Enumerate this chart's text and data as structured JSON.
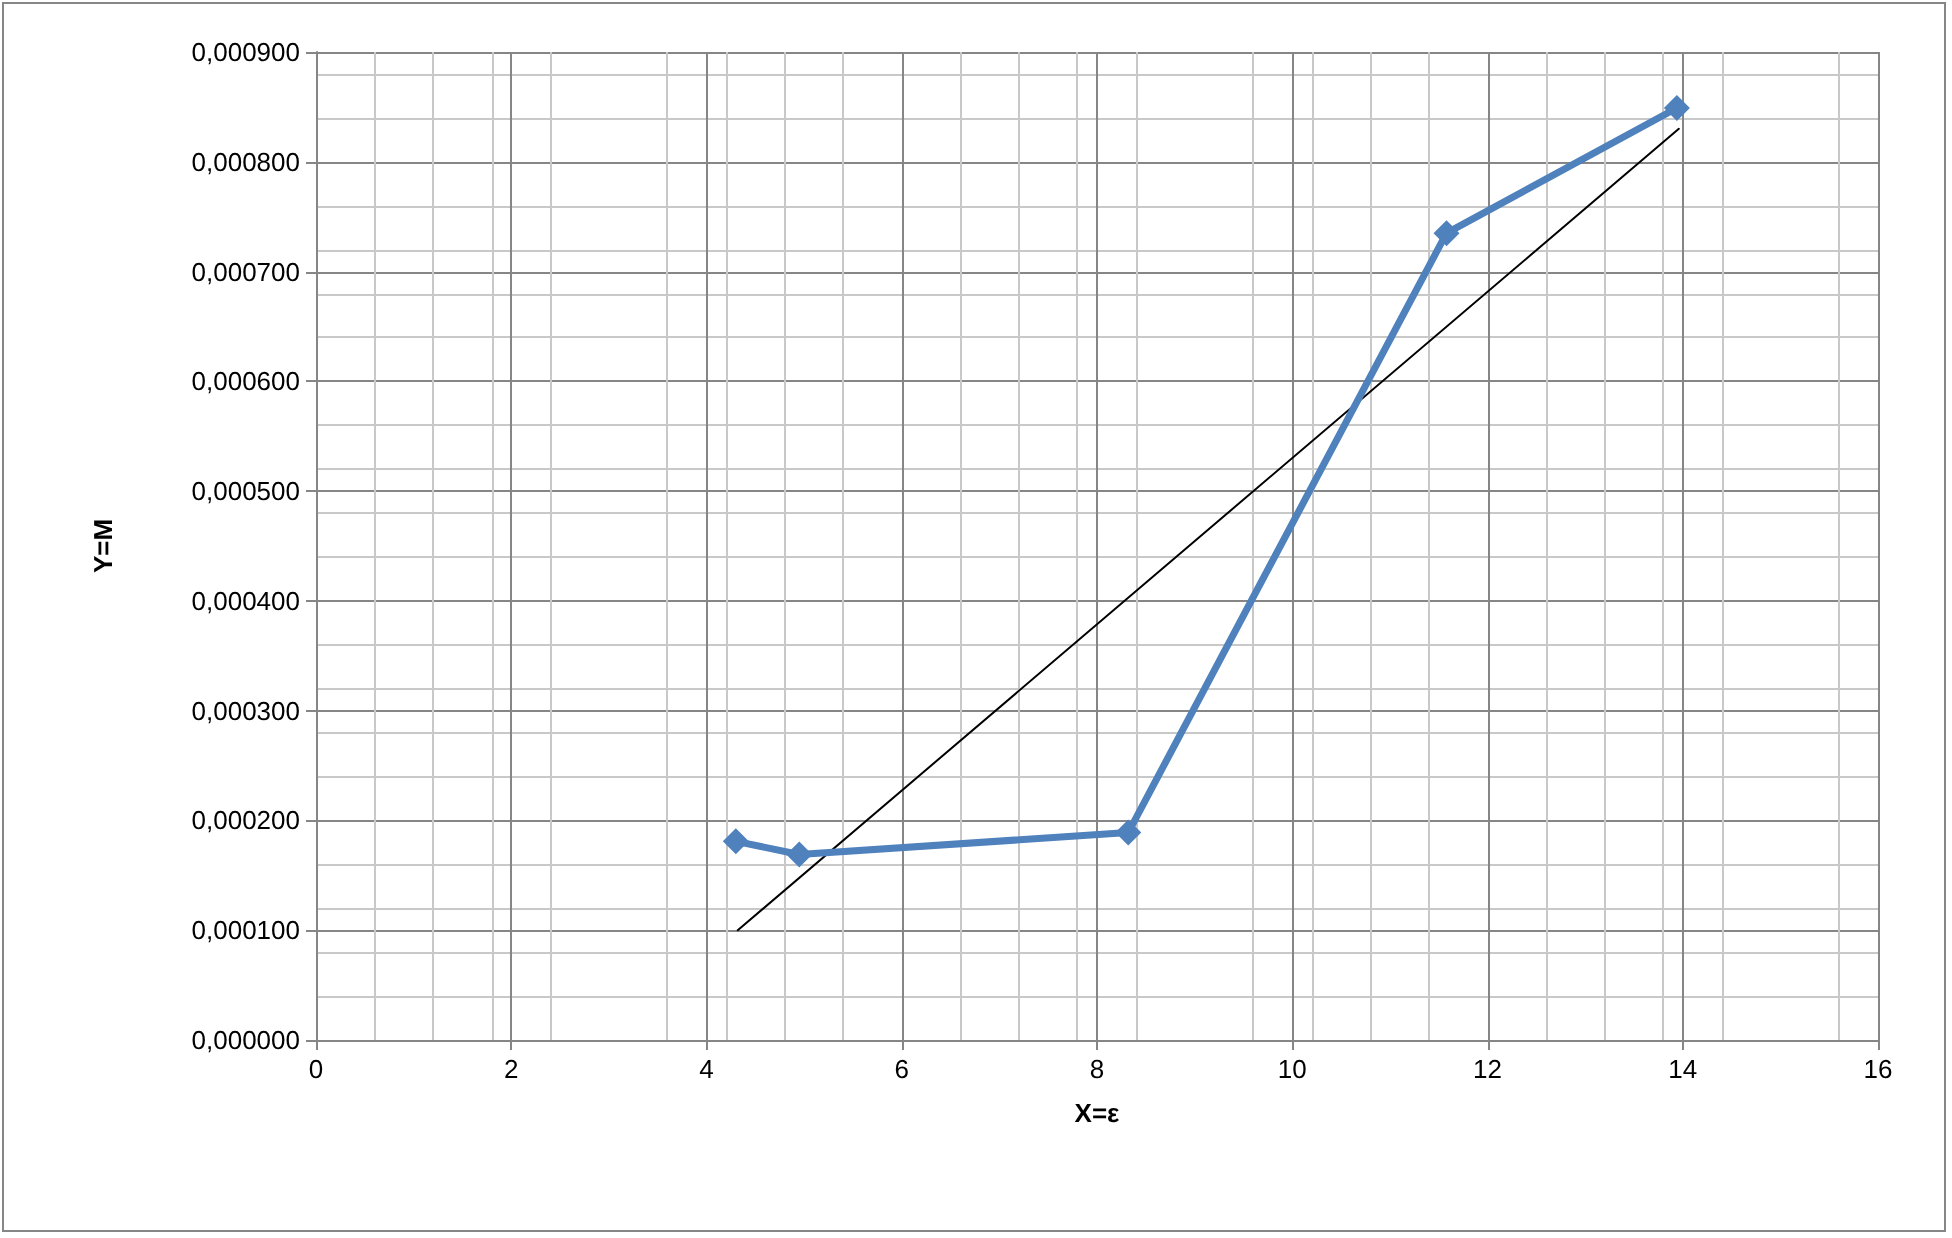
{
  "chart_data": {
    "type": "line",
    "xlabel": "X=ε",
    "ylabel": "Y=M",
    "marker": "diamond",
    "grid": true,
    "xlim": [
      0,
      16
    ],
    "xticks": [
      0,
      2,
      4,
      6,
      8,
      10,
      12,
      14,
      16
    ],
    "ylim": [
      0,
      0.0009
    ],
    "yticks": [
      {
        "value": 0,
        "label": "0,000000"
      },
      {
        "value": 0.0001,
        "label": "0,000100"
      },
      {
        "value": 0.0002,
        "label": "0,000200"
      },
      {
        "value": 0.0003,
        "label": "0,000300"
      },
      {
        "value": 0.0004,
        "label": "0,000400"
      },
      {
        "value": 0.0005,
        "label": "0,000500"
      },
      {
        "value": 0.0006,
        "label": "0,000600"
      },
      {
        "value": 0.0007,
        "label": "0,000700"
      },
      {
        "value": 0.0008,
        "label": "0,000800"
      },
      {
        "value": 0.0009,
        "label": "0,000900"
      }
    ],
    "series": [
      {
        "color": "#4f81bd",
        "x": [
          4.3,
          4.95,
          8.32,
          11.58,
          13.94
        ],
        "values": [
          0.000181,
          0.000169,
          0.000189,
          0.000735,
          0.000849
        ]
      },
      {
        "type": "line",
        "color": "#000000",
        "marker": "none",
        "x": [
          4.32,
          13.96
        ],
        "values": [
          0.0001,
          0.00083
        ]
      }
    ]
  }
}
